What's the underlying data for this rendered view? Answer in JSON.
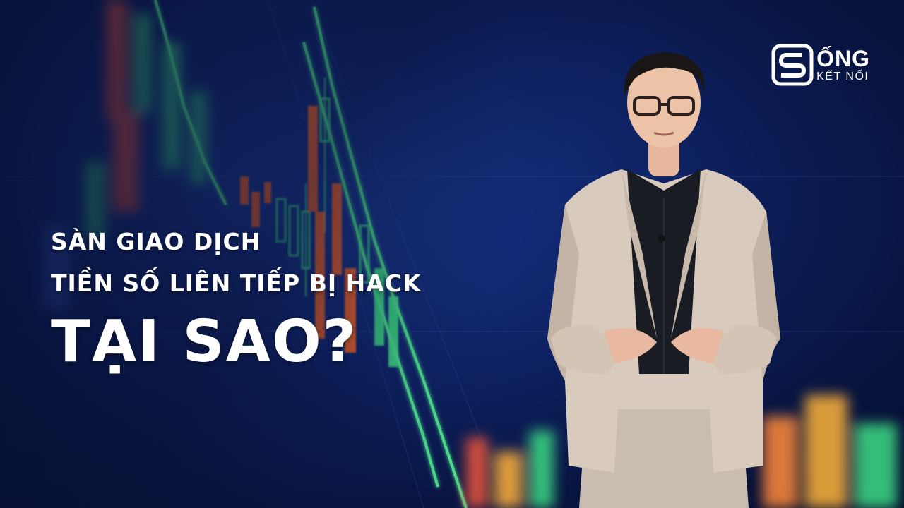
{
  "logo": {
    "word": "ỐNG",
    "subtitle": "KẾT NỐI"
  },
  "headline": {
    "line1": "SÀN GIAO DỊCH",
    "line2": "TIỀN SỐ LIÊN TIẾP BỊ HACK",
    "main": "TẠI SAO?"
  },
  "colors": {
    "background": "#0b1a4a",
    "candle_up": "#3ddc84",
    "candle_down": "#ff6a2a",
    "text": "#ffffff"
  }
}
